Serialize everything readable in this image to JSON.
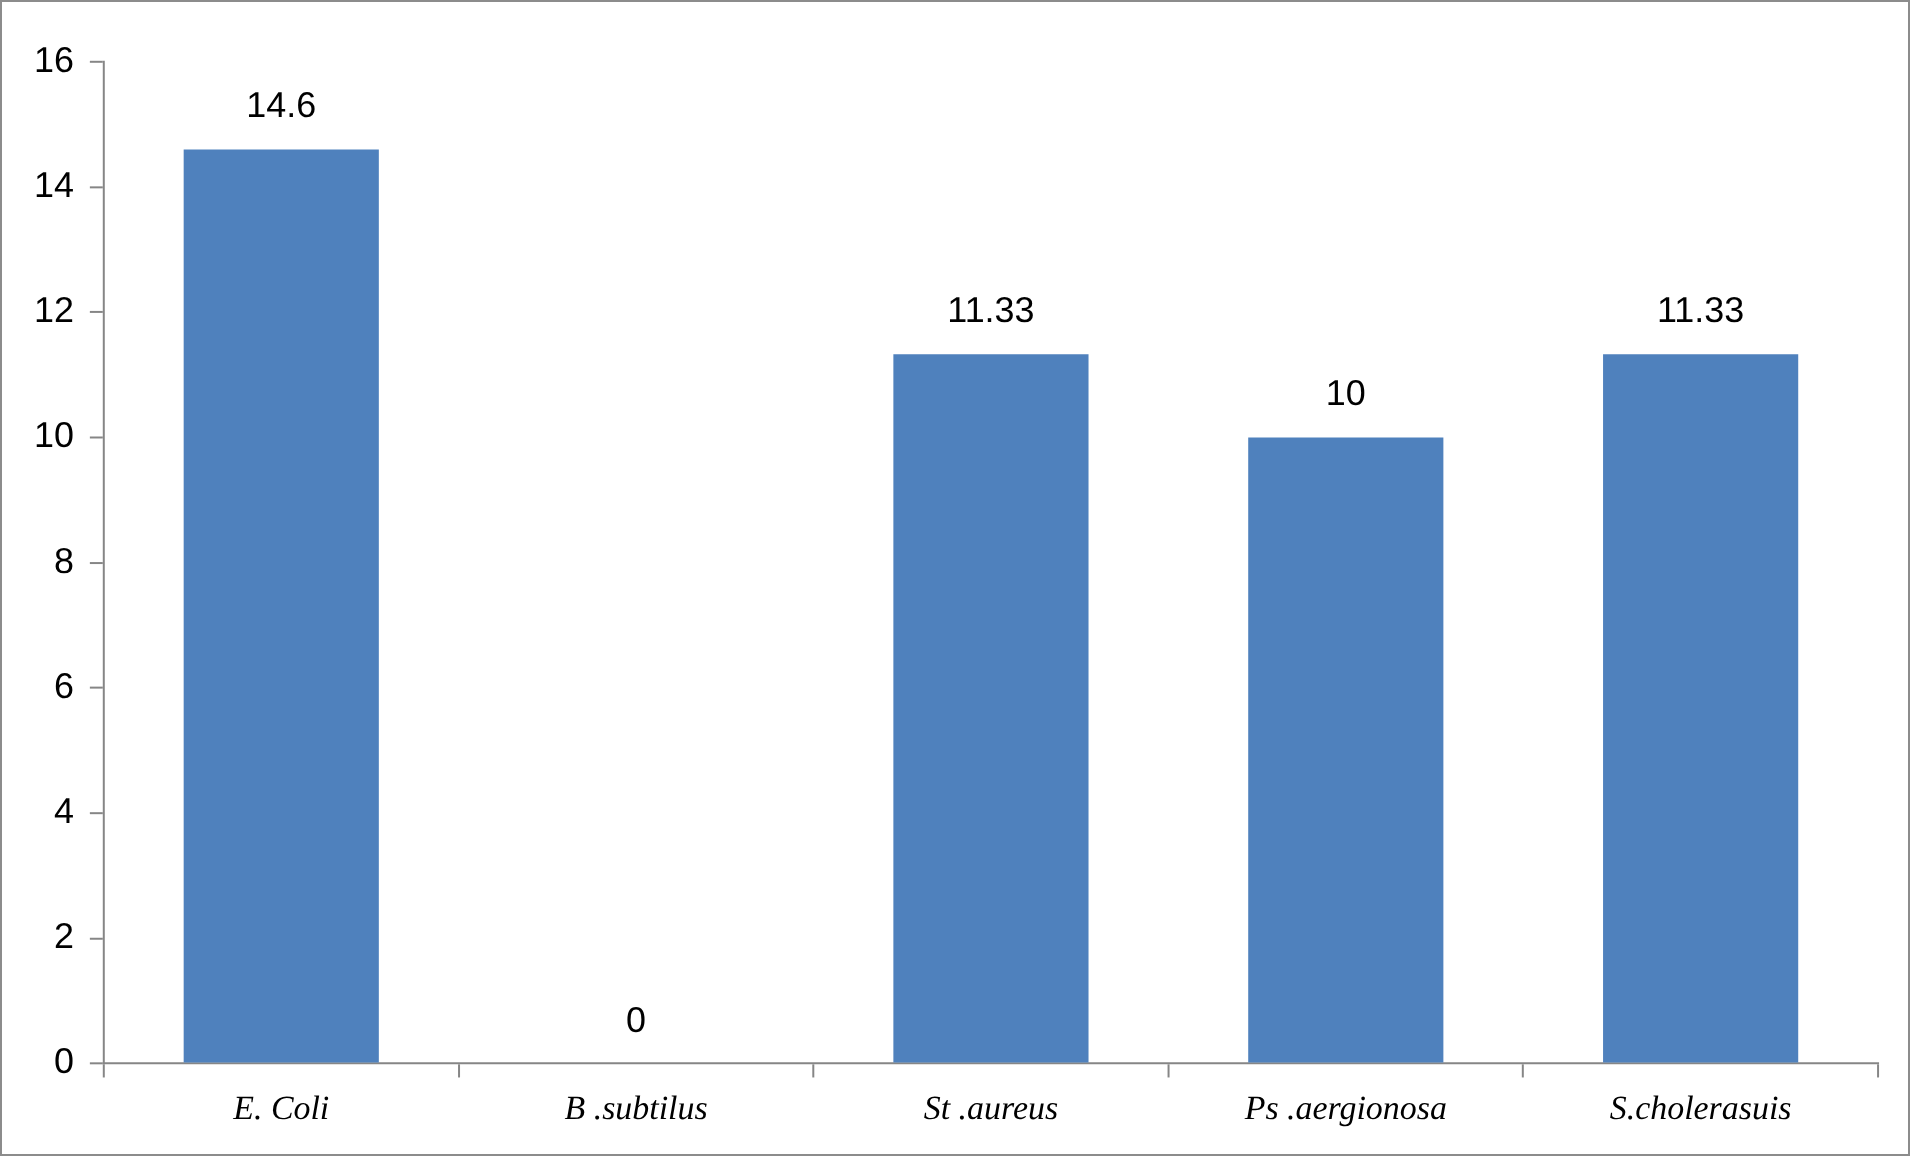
{
  "chart_data": {
    "type": "bar",
    "categories": [
      "E. Coli",
      "B .subtilus",
      "St .aureus",
      "Ps .aergionosa",
      "S.cholerasuis"
    ],
    "values": [
      14.6,
      0,
      11.33,
      10,
      11.33
    ],
    "color": "#4f81bd",
    "ylim": [
      0,
      16
    ],
    "yticks": [
      0,
      2,
      4,
      6,
      8,
      10,
      12,
      14,
      16
    ],
    "data_labels": true,
    "grid": false,
    "legend": false
  }
}
